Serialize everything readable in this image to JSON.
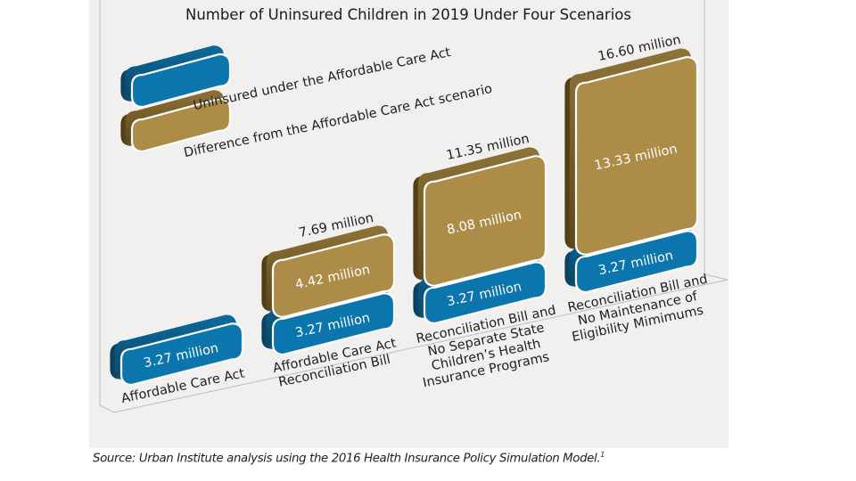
{
  "chart_data": {
    "type": "bar",
    "stacked": true,
    "title": "Number of Uninsured Children in 2019 Under Four Scenarios",
    "xlabel": "",
    "ylabel": "",
    "unit": "million",
    "categories": [
      "Affordable Care Act",
      "Affordable Care Act Reconciliation Bill",
      "Reconciliation Bill and No Separate State Children's Health Insurance Programs",
      "Reconciliation Bill and No Maintenance of Eligibility Mimimums"
    ],
    "category_lines": [
      [
        "Affordable Care Act"
      ],
      [
        "Affordable Care Act",
        "Reconciliation Bill"
      ],
      [
        "Reconciliation Bill and",
        "No Separate State",
        "Children’s Health",
        "Insurance Programs"
      ],
      [
        "Reconciliation Bill and",
        "No Maintenance of",
        "Eligibility Mimimums"
      ]
    ],
    "series": [
      {
        "name": "Uninsured under the Affordable Care Act",
        "color": "#0a76ad",
        "values": [
          3.27,
          3.27,
          3.27,
          3.27
        ],
        "labels": [
          "3.27 million",
          "3.27 million",
          "3.27 million",
          "3.27 million"
        ]
      },
      {
        "name": "Difference from the Affordable Care Act scenario",
        "color": "#ad8c48",
        "values": [
          0,
          4.42,
          8.08,
          13.33
        ],
        "labels": [
          "",
          "4.42 million",
          "8.08 million",
          "13.33 million"
        ]
      }
    ],
    "totals": [
      3.27,
      7.69,
      11.35,
      16.6
    ],
    "total_labels": [
      "",
      "7.69 million",
      "11.35 million",
      "16.60 million"
    ],
    "legend": {
      "position": "top-left",
      "entries": [
        "Uninsured under the Affordable Care Act",
        "Difference from the Affordable Care Act scenario"
      ]
    },
    "grid": false,
    "ylim": [
      0,
      17
    ]
  },
  "source": {
    "text": "Source: Urban Institute analysis using the 2016 Health Insurance Policy Simulation Model.",
    "footnote": "1"
  }
}
